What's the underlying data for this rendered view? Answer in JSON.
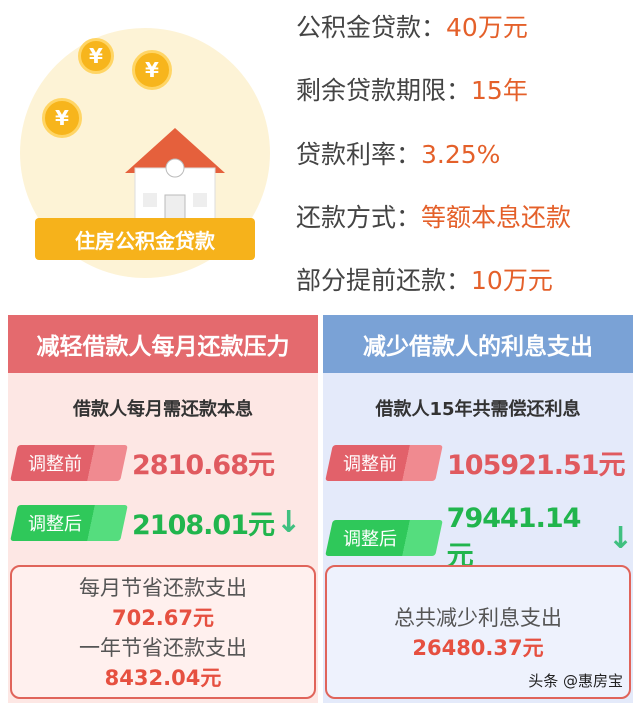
{
  "illustration": {
    "badge": "住房公积金贷款",
    "coin_symbol": "¥"
  },
  "info": [
    {
      "label": "公积金贷款：",
      "value": "40万元"
    },
    {
      "label": "剩余贷款期限：",
      "value": "15年"
    },
    {
      "label": "贷款利率：",
      "value": "3.25%"
    },
    {
      "label": "还款方式：",
      "value": "等额本息还款"
    },
    {
      "label": "部分提前还款：",
      "value": "10万元"
    }
  ],
  "left": {
    "title": "减轻借款人每月还款压力",
    "subtitle": "借款人每月需还款本息",
    "before_label": "调整前",
    "before_value": "2810.68元",
    "after_label": "调整后",
    "after_value": "2108.01元",
    "summary": [
      "每月节省还款支出",
      "702.67元",
      "一年节省还款支出",
      "8432.04元"
    ]
  },
  "right": {
    "title": "减少借款人的利息支出",
    "subtitle": "借款人15年共需偿还利息",
    "before_label": "调整前",
    "before_value": "105921.51元",
    "after_label": "调整后",
    "after_value": "79441.14元",
    "summary": [
      "总共减少利息支出",
      "26480.37元"
    ]
  },
  "watermark": "头条 @惠房宝",
  "colors": {
    "red": "#e46a6e",
    "blue": "#7aa2d6",
    "green": "#21b54d",
    "orange": "#e4602a"
  }
}
